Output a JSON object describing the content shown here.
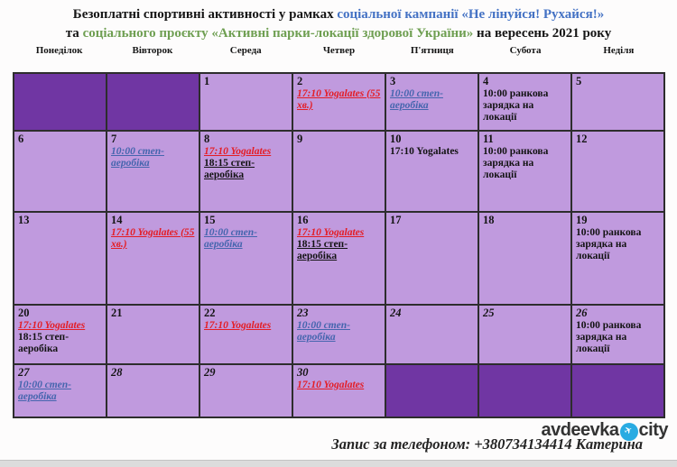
{
  "title": {
    "line1_black": "Безоплатні спортивні активності у рамках ",
    "line1_blue": "соціальної кампанії «Не лінуйся! Рухайся!»",
    "line2_black1": "та ",
    "line2_green": "соціального проєкту «Активні парки-локації здорової України»",
    "line2_black2": "  на вересень 2021 року"
  },
  "weekdays": [
    "Понеділок",
    "Вівторок",
    "Середа",
    "Четвер",
    "П'ятниця",
    "Субота",
    "Неділя"
  ],
  "calendar": {
    "month": "вересень 2021",
    "rows": [
      {
        "cells": [
          {
            "dark": true
          },
          {
            "dark": true
          },
          {
            "day": "1"
          },
          {
            "day": "2",
            "entries": [
              {
                "text": "17:10 Yogalates (55 хв.)",
                "style": "red"
              }
            ]
          },
          {
            "day": "3",
            "entries": [
              {
                "text": "10:00 степ-аеробіка",
                "style": "blue"
              }
            ]
          },
          {
            "day": "4",
            "entries": [
              {
                "text": "10:00 ранкова зарядка на локації",
                "style": "black"
              }
            ]
          },
          {
            "day": "5"
          }
        ]
      },
      {
        "cells": [
          {
            "day": "6"
          },
          {
            "day": "7",
            "entries": [
              {
                "text": "10:00 степ-аеробіка",
                "style": "blue"
              }
            ]
          },
          {
            "day": "8",
            "entries": [
              {
                "text": "17:10 Yogalates",
                "style": "red"
              },
              {
                "text": "18:15 степ-аеробіка",
                "style": "black-u"
              }
            ]
          },
          {
            "day": "9"
          },
          {
            "day": "10",
            "entries": [
              {
                "text": "17:10 Yogalates",
                "style": "black"
              }
            ]
          },
          {
            "day": "11",
            "entries": [
              {
                "text": "10:00 ранкова зарядка на локації",
                "style": "black"
              }
            ]
          },
          {
            "day": "12"
          }
        ]
      },
      {
        "cells": [
          {
            "day": "13"
          },
          {
            "day": "14",
            "entries": [
              {
                "text": "17:10 Yogalates (55 хв.)",
                "style": "red"
              }
            ]
          },
          {
            "day": "15",
            "entries": [
              {
                "text": "10:00 степ-аеробіка",
                "style": "blue"
              }
            ]
          },
          {
            "day": "16",
            "entries": [
              {
                "text": "17:10 Yogalates",
                "style": "red"
              },
              {
                "text": "18:15 степ-аеробіка",
                "style": "black-u"
              }
            ]
          },
          {
            "day": "17"
          },
          {
            "day": "18"
          },
          {
            "day": "19",
            "entries": [
              {
                "text": "10:00 ранкова зарядка на локації",
                "style": "black"
              }
            ]
          }
        ]
      },
      {
        "cells": [
          {
            "day": "20",
            "entries": [
              {
                "text": "17:10 Yogalates",
                "style": "red"
              },
              {
                "text": "18:15 степ-аеробіка",
                "style": "black"
              }
            ]
          },
          {
            "day": "21"
          },
          {
            "day": "22",
            "entries": [
              {
                "text": "17:10 Yogalates",
                "style": "red"
              }
            ]
          },
          {
            "day": "23",
            "italic": true,
            "entries": [
              {
                "text": "10:00 степ-аеробіка",
                "style": "blue"
              }
            ]
          },
          {
            "day": "24",
            "italic": true
          },
          {
            "day": "25",
            "italic": true
          },
          {
            "day": "26",
            "italic": true,
            "entries": [
              {
                "text": "10:00 ранкова зарядка на локації",
                "style": "black"
              }
            ]
          }
        ]
      },
      {
        "cells": [
          {
            "day": "27",
            "italic": true,
            "entries": [
              {
                "text": "10:00 степ-аеробіка",
                "style": "blue"
              }
            ]
          },
          {
            "day": "28",
            "italic": true
          },
          {
            "day": "29",
            "italic": true
          },
          {
            "day": "30",
            "italic": true,
            "entries": [
              {
                "text": "17:10 Yogalates",
                "style": "red"
              }
            ]
          },
          {
            "dark": true
          },
          {
            "dark": true
          },
          {
            "dark": true
          }
        ]
      }
    ]
  },
  "footer": {
    "phone_text": "Запис за телефоном: +380734134414 Катерина",
    "logo_left": "avdeevka",
    "logo_right": "city",
    "logo_icon": "paper-plane"
  },
  "colors": {
    "cell_light": "#c09ade",
    "cell_dark": "#7036a3",
    "grid_line": "#2d2d2d",
    "activity_red": "#e41d25",
    "activity_blue": "#4565ae",
    "title_blue": "#4472c4",
    "title_green": "#6f9f52",
    "logo_blue": "#29abe2"
  }
}
